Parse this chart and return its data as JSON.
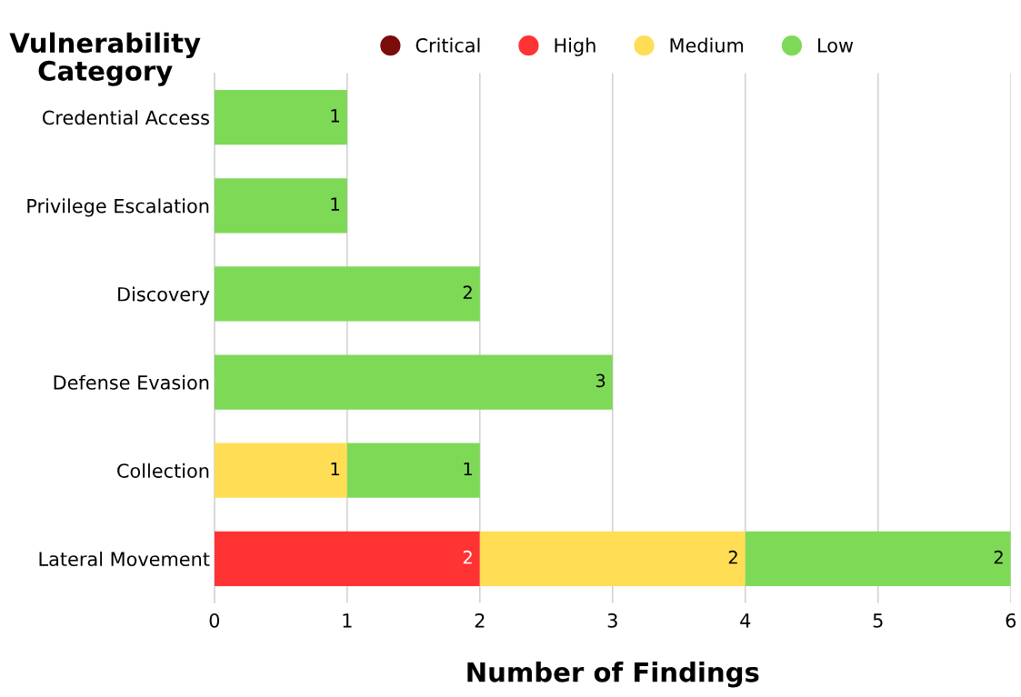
{
  "chart_data": {
    "type": "bar",
    "orientation": "horizontal",
    "stacked": true,
    "ylabel": "Vulnerability Category",
    "xlabel": "Number of Findings",
    "categories": [
      "Credential Access",
      "Privilege Escalation",
      "Discovery",
      "Defense Evasion",
      "Collection",
      "Lateral Movement"
    ],
    "series": [
      {
        "name": "Critical",
        "color": "#7b0c0c",
        "values": [
          0,
          0,
          0,
          0,
          0,
          0
        ],
        "value_labels": [
          null,
          null,
          null,
          null,
          null,
          null
        ]
      },
      {
        "name": "High",
        "color": "#ff3333",
        "values": [
          0,
          0,
          0,
          0,
          0,
          2
        ],
        "value_labels": [
          null,
          null,
          null,
          null,
          null,
          "2"
        ]
      },
      {
        "name": "Medium",
        "color": "#ffdd55",
        "values": [
          0,
          0,
          0,
          0,
          1,
          2
        ],
        "value_labels": [
          null,
          null,
          null,
          null,
          "1",
          "2"
        ]
      },
      {
        "name": "Low",
        "color": "#7ed957",
        "values": [
          1,
          1,
          2,
          3,
          1,
          2
        ],
        "value_labels": [
          "1",
          "1",
          "2",
          "3",
          "1",
          "2"
        ]
      }
    ],
    "xlim": [
      0,
      6
    ],
    "xticks": [
      0,
      1,
      2,
      3,
      4,
      5,
      6
    ],
    "grid": "x",
    "legend": "top",
    "marker": "circle"
  }
}
